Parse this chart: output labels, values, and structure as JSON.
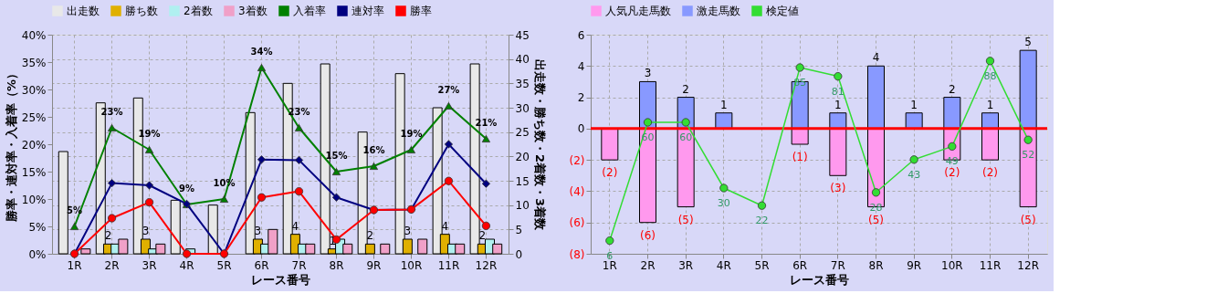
{
  "chart_data": [
    {
      "type": "bar",
      "categories": [
        "1R",
        "2R",
        "3R",
        "4R",
        "5R",
        "6R",
        "7R",
        "8R",
        "9R",
        "10R",
        "11R",
        "12R"
      ],
      "xlabel": "レース番号",
      "ylabel": "勝率・連対率・入着率（%）",
      "y2label": "出走数・勝ち数・2着数・3着数",
      "legend": "top",
      "grid": true,
      "ylim": [
        0,
        40
      ],
      "yticks": [
        {
          "value": 0,
          "label": "0%"
        },
        {
          "value": 5,
          "label": "5%"
        },
        {
          "value": 10,
          "label": "10%"
        },
        {
          "value": 15,
          "label": "15%"
        },
        {
          "value": 20,
          "label": "20%"
        },
        {
          "value": 25,
          "label": "25%"
        },
        {
          "value": 30,
          "label": "30%"
        },
        {
          "value": 35,
          "label": "35%"
        },
        {
          "value": 40,
          "label": "40%"
        }
      ],
      "y2lim": [
        0,
        45
      ],
      "y2ticks": [
        0,
        5,
        10,
        15,
        20,
        25,
        30,
        35,
        40,
        45
      ],
      "series": [
        {
          "name": "出走数",
          "axis": "y2",
          "color": "#e8e8e8",
          "values": [
            21,
            31,
            32,
            11,
            10,
            29,
            35,
            39,
            25,
            37,
            30,
            39
          ]
        },
        {
          "name": "勝ち数",
          "axis": "y2",
          "color": "#e0b000",
          "values": [
            0,
            2,
            3,
            0,
            0,
            3,
            4,
            1,
            2,
            3,
            4,
            2
          ],
          "value_labels": [
            null,
            "2",
            "3",
            null,
            null,
            "3",
            "4",
            "1",
            "2",
            "3",
            "4",
            "2"
          ]
        },
        {
          "name": "2着数",
          "axis": "y2",
          "color": "#b0f0f0",
          "values": [
            0,
            2,
            1,
            1,
            0,
            2,
            2,
            3,
            0,
            0,
            2,
            3
          ]
        },
        {
          "name": "3着数",
          "axis": "y2",
          "color": "#f0a0c8",
          "values": [
            1,
            3,
            2,
            0,
            0,
            5,
            2,
            2,
            2,
            3,
            2,
            2
          ]
        },
        {
          "name": "入着率",
          "type": "line",
          "axis": "y",
          "color": "#008000",
          "marker": "triangle",
          "values": [
            5,
            23,
            19,
            9,
            10,
            34,
            23,
            15,
            16,
            19,
            27,
            21
          ],
          "value_labels": [
            "5%",
            "23%",
            "19%",
            "9%",
            "10%",
            "34%",
            "23%",
            "15%",
            "16%",
            "19%",
            "27%",
            "21%"
          ]
        },
        {
          "name": "連対率",
          "type": "line",
          "axis": "y",
          "color": "#000080",
          "marker": "diamond",
          "values": [
            0,
            12.9,
            12.5,
            9.1,
            0,
            17.2,
            17.1,
            10.3,
            8.0,
            8.1,
            20.0,
            12.8
          ]
        },
        {
          "name": "勝率",
          "type": "line",
          "axis": "y",
          "color": "#ff0000",
          "marker": "circle",
          "values": [
            0,
            6.5,
            9.4,
            0,
            0,
            10.3,
            11.4,
            2.6,
            8.0,
            8.1,
            13.3,
            5.1
          ]
        }
      ]
    },
    {
      "type": "bar",
      "categories": [
        "1R",
        "2R",
        "3R",
        "4R",
        "5R",
        "6R",
        "7R",
        "8R",
        "9R",
        "10R",
        "11R",
        "12R"
      ],
      "xlabel": "レース番号",
      "legend": "top",
      "grid": true,
      "stacked": true,
      "ylim": [
        -8,
        6
      ],
      "yticks": [
        6,
        4,
        2,
        0,
        {
          "value": -2,
          "label": "(2)"
        },
        {
          "value": -4,
          "label": "(4)"
        },
        {
          "value": -6,
          "label": "(6)"
        },
        {
          "value": -8,
          "label": "(8)"
        }
      ],
      "y2lim": [
        0,
        100
      ],
      "ref_lines": [
        {
          "axis": "y",
          "value": 0,
          "color": "#ff0000"
        }
      ],
      "series": [
        {
          "name": "人気凡走馬数",
          "axis": "y",
          "color": "#ff99ee",
          "values": [
            -2,
            -6,
            -5,
            0,
            0,
            -1,
            -3,
            -5,
            0,
            -2,
            -2,
            -5
          ],
          "value_labels": [
            "(2)",
            "(6)",
            "(5)",
            null,
            null,
            "(1)",
            "(3)",
            "(5)",
            null,
            "(2)",
            "(2)",
            "(5)"
          ]
        },
        {
          "name": "激走馬数",
          "axis": "y",
          "color": "#8899ff",
          "values": [
            0,
            3,
            2,
            1,
            0,
            3,
            1,
            4,
            1,
            2,
            1,
            5
          ],
          "value_labels": [
            null,
            "3",
            "2",
            "1",
            null,
            null,
            "1",
            "4",
            "1",
            "2",
            "1",
            "5"
          ]
        },
        {
          "name": "検定値",
          "type": "line",
          "axis": "y2",
          "color": "#33dd33",
          "marker": "circle",
          "values": [
            6,
            60,
            60,
            30,
            22,
            85,
            81,
            28,
            43,
            49,
            88,
            52
          ],
          "value_labels": [
            "6",
            "60",
            "60",
            "30",
            "22",
            "85",
            "81",
            "28",
            "43",
            "49",
            "88",
            "52"
          ]
        }
      ]
    }
  ]
}
